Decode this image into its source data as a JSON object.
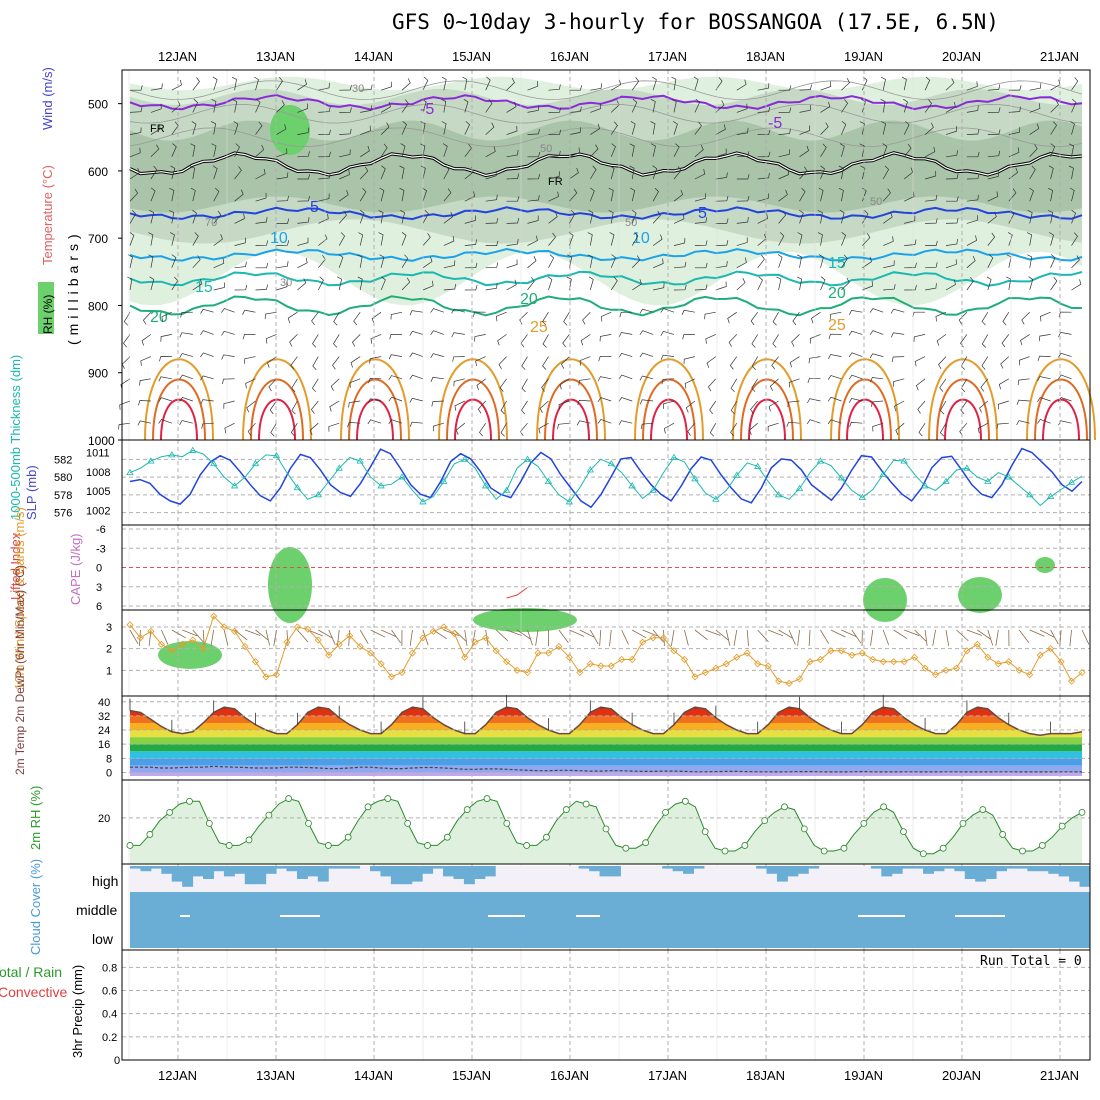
{
  "title": "GFS 0~10day 3-hourly for BOSSANGOA (17.5E, 6.5N)",
  "colors": {
    "purple": "#8a2bd8",
    "blue": "#2244dd",
    "lightblue": "#1aa3e8",
    "teal": "#1bb8b0",
    "green": "#1fae7a",
    "orange": "#e39c2a",
    "darkorange": "#e06a22",
    "red": "#e02244",
    "rh_light": "#dff0df",
    "rh_mid": "#a9c4a9",
    "rh_dark": "#6cd06c",
    "cloud": "#6aaed6",
    "cloud_bg": "#f4f0f8",
    "grid": "#b0b0b0"
  },
  "chart_data": [
    {
      "panel": "upper-air",
      "type": "heatmap",
      "ylabel": "(millibars)",
      "legend_labels": [
        "Temperature (°C)",
        "Wind (m/s)",
        "RH (%)"
      ],
      "xlabels": [
        "12JAN",
        "13JAN",
        "14JAN",
        "15JAN",
        "16JAN",
        "17JAN",
        "18JAN",
        "19JAN",
        "20JAN",
        "21JAN"
      ],
      "yticks": [
        500,
        600,
        700,
        800,
        900,
        1000
      ],
      "ylim": [
        450,
        1000
      ],
      "isotherm_labels": [
        "-5",
        "FR",
        "5",
        "10",
        "15",
        "20",
        "25"
      ],
      "rh_labels": [
        "30",
        "50",
        "70"
      ]
    },
    {
      "panel": "thickness-slp",
      "type": "line",
      "ylabel_left": "1000-500mb Thickness (dm)",
      "ylabel_right": "SLP (mb)",
      "left_ticks": [
        576,
        578,
        580,
        582
      ],
      "right_ticks": [
        1002,
        1005,
        1008,
        1011
      ],
      "series": [
        {
          "name": "Thickness",
          "values": [
            580.5,
            581.0,
            581.8,
            582.3,
            582.5,
            582.3,
            583.0,
            582.6,
            581.5,
            580.0,
            579.0,
            580.0,
            581.5,
            582.5,
            582.4,
            580.5,
            578.8,
            577.5,
            578.0,
            579.5,
            581.0,
            582.2,
            581.8,
            580.0,
            579.0,
            579.2,
            580.0,
            578.5,
            577.2,
            577.8,
            579.5,
            581.5,
            582.0,
            581.0,
            579.0,
            577.5,
            578.5,
            581.0,
            582.0,
            581.2,
            579.5,
            578.0,
            577.2,
            578.8,
            580.8,
            582.0,
            581.5,
            580.5,
            579.0,
            577.6,
            578.5,
            580.5,
            582.2,
            581.7,
            579.8,
            578.2,
            577.5,
            578.5,
            580.2,
            581.6,
            581.2,
            579.5,
            578.0,
            577.5,
            578.7,
            580.5,
            581.8,
            581.3,
            579.9,
            578.5,
            577.7,
            578.6,
            580.3,
            581.9,
            581.8,
            580.3,
            579.0,
            578.5,
            579.5,
            580.8,
            581.0,
            580.0,
            579.5,
            580.5,
            580.0,
            579.0,
            578.0,
            576.8,
            577.8,
            578.6,
            579.4,
            580.1
          ]
        },
        {
          "name": "SLP",
          "values": [
            1006.5,
            1006.8,
            1006.2,
            1004.5,
            1003.5,
            1003.0,
            1004.5,
            1007.5,
            1009.5,
            1010.5,
            1009.8,
            1008.0,
            1006.0,
            1004.3,
            1003.5,
            1005.5,
            1008.5,
            1010.7,
            1010.2,
            1008.3,
            1006.0,
            1004.8,
            1004.2,
            1006.2,
            1008.8,
            1011.5,
            1010.8,
            1008.5,
            1006.0,
            1004.5,
            1004.0,
            1006.5,
            1009.6,
            1010.8,
            1010.0,
            1008.0,
            1005.5,
            1004.5,
            1004.0,
            1006.5,
            1009.4,
            1011.0,
            1010.0,
            1007.5,
            1005.5,
            1003.5,
            1002.5,
            1004.5,
            1007.2,
            1010.0,
            1010.2,
            1008.0,
            1006.0,
            1004.5,
            1003.5,
            1005.8,
            1008.5,
            1010.3,
            1009.8,
            1007.5,
            1005.5,
            1003.8,
            1003.2,
            1005.5,
            1008.6,
            1010.0,
            1009.8,
            1008.3,
            1006.0,
            1004.8,
            1003.6,
            1005.5,
            1008.2,
            1010.5,
            1010.3,
            1008.2,
            1006.3,
            1004.6,
            1003.5,
            1005.5,
            1008.6,
            1010.2,
            1010.4,
            1008.3,
            1006.0,
            1004.5,
            1004.0,
            1006.0,
            1009.0,
            1011.6,
            1011.0,
            1009.5,
            1008.0,
            1006.0,
            1005.0,
            1006.5
          ]
        }
      ]
    },
    {
      "panel": "cape-li",
      "type": "line",
      "ylabel_left": "Lifted Index",
      "ylabel_right": "CAPE (J/kg)",
      "left_ticks": [
        "-6",
        "-3",
        "0",
        "3",
        "6"
      ],
      "series": [
        {
          "name": "CAPE",
          "x": [
            36,
            37,
            38
          ],
          "values": [
            2.4,
            3.0,
            4.5
          ]
        }
      ]
    },
    {
      "panel": "wind10m",
      "type": "line",
      "ylabel": "10m Wind Speed & Barbs (m/s)",
      "yticks": [
        1,
        2,
        3
      ],
      "ylim": [
        0,
        3.6
      ],
      "series": [
        {
          "name": "10m wind speed",
          "values": [
            3.1,
            2.5,
            2.8,
            2.2,
            1.9,
            2.2,
            2.4,
            2.0,
            3.5,
            3.0,
            2.8,
            2.1,
            1.4,
            0.7,
            0.8,
            2.3,
            3.0,
            2.9,
            2.4,
            1.7,
            2.2,
            2.6,
            2.1,
            1.8,
            1.3,
            0.7,
            0.9,
            1.8,
            2.5,
            2.8,
            3.0,
            2.7,
            1.6,
            2.3,
            2.5,
            1.9,
            1.4,
            1.0,
            0.9,
            1.8,
            1.8,
            2.1,
            1.6,
            0.9,
            1.3,
            1.2,
            1.2,
            1.5,
            1.5,
            2.3,
            2.5,
            2.5,
            1.9,
            1.5,
            0.7,
            0.9,
            1.1,
            1.3,
            1.6,
            1.8,
            1.3,
            1.2,
            0.5,
            0.4,
            0.6,
            1.4,
            1.5,
            1.9,
            1.9,
            1.7,
            1.8,
            1.5,
            1.4,
            1.4,
            1.4,
            1.6,
            1.1,
            0.8,
            1.0,
            1.1,
            1.9,
            2.2,
            1.6,
            1.3,
            1.4,
            1.0,
            0.8,
            1.7,
            2.0,
            1.4,
            0.5,
            0.9
          ]
        }
      ]
    },
    {
      "panel": "temp2m",
      "type": "area",
      "ylabel": "2m Temp 2m DewPt (6hr Min/Max) (°C)",
      "yticks": [
        0,
        8,
        16,
        24,
        32,
        40
      ],
      "ylim": [
        -2,
        41
      ],
      "series": [
        {
          "name": "2m Temp",
          "values": [
            35,
            34,
            30,
            26,
            23,
            22,
            23,
            28,
            34,
            37,
            36,
            31,
            27,
            24,
            22,
            22,
            27,
            34,
            37,
            36,
            31,
            27,
            24,
            22,
            22,
            27,
            34,
            37,
            36,
            31,
            27,
            24,
            22,
            22,
            27,
            34,
            37,
            36,
            31,
            27,
            24,
            22,
            22,
            27,
            34,
            37,
            36,
            31,
            27,
            24,
            22,
            22,
            27,
            34,
            37,
            36,
            31,
            27,
            24,
            22,
            22,
            27,
            34,
            37,
            36,
            31,
            27,
            24,
            22,
            22,
            27,
            34,
            37,
            36,
            31,
            27,
            24,
            22,
            22,
            27,
            34,
            37,
            36,
            31,
            27,
            24,
            22,
            21,
            22,
            22,
            22,
            23
          ]
        },
        {
          "name": "2m DewPt",
          "values": [
            3,
            3,
            3,
            2.5,
            2.5,
            2.8,
            3,
            3,
            3.5,
            3.2,
            3,
            2.8,
            2.5,
            2.5,
            2.5,
            3,
            3,
            2.8,
            2.5,
            2.2,
            2.2,
            2.5,
            3,
            3,
            2.5,
            2.2,
            2.2,
            2.5,
            2.8,
            2.8,
            2.5,
            2.2,
            1.8,
            1.8,
            2,
            2,
            1.8,
            1.5,
            1.2,
            1,
            1,
            1.2,
            1.2,
            1,
            0.8,
            0.8,
            1,
            1,
            0.8,
            0.6,
            0.6,
            0.8,
            0.8,
            0.6,
            0.4,
            0.4,
            0.5,
            0.6,
            0.6,
            0.5,
            0.4,
            0.4,
            0.3,
            0.4,
            0.5,
            0.5,
            0.4,
            0.3,
            0.3,
            0.4,
            0.5,
            0.4,
            0.3,
            0.3,
            0.4,
            0.4,
            0.3,
            0.3,
            0.4,
            0.4,
            0.3,
            0.3,
            0.3,
            0.4,
            0.4,
            0.3,
            0.3,
            0.3,
            0.3,
            0.4,
            0.4,
            0.3
          ]
        }
      ]
    },
    {
      "panel": "rh2m",
      "type": "line",
      "ylabel": "2m RH (%)",
      "yticks": [
        20
      ],
      "ylim": [
        4,
        33
      ],
      "series": [
        {
          "name": "2m RH",
          "values": [
            10,
            10,
            14,
            19,
            22,
            25,
            26,
            26,
            18,
            11,
            10,
            10,
            12,
            17,
            21,
            25,
            27,
            26,
            18,
            11,
            10,
            10,
            13,
            19,
            24,
            26,
            27,
            26,
            18,
            11,
            10,
            10,
            13,
            19,
            23,
            26,
            27,
            26,
            18,
            11,
            10,
            10,
            13,
            19,
            23,
            26,
            25,
            24,
            16,
            10,
            9,
            9,
            11,
            17,
            22,
            25,
            26,
            24,
            15,
            9,
            8,
            8,
            10,
            15,
            19,
            22,
            24,
            23,
            16,
            10,
            8,
            8,
            9,
            14,
            18,
            22,
            24,
            22,
            15,
            9,
            7,
            7,
            9,
            13,
            18,
            21,
            23,
            21,
            14,
            9,
            8,
            8,
            10,
            13,
            17,
            20,
            22
          ]
        }
      ]
    },
    {
      "panel": "cloud",
      "type": "area",
      "ylabel": "Cloud Cover (%)",
      "ylabels": [
        "high",
        "middle",
        "low"
      ],
      "series": [
        {
          "name": "high",
          "values": [
            10,
            20,
            10,
            30,
            60,
            80,
            40,
            50,
            20,
            40,
            30,
            70,
            70,
            30,
            10,
            20,
            50,
            40,
            60,
            10,
            10,
            10,
            0,
            20,
            40,
            70,
            70,
            60,
            30,
            10,
            40,
            50,
            70,
            50,
            40,
            0,
            0,
            0,
            0,
            0,
            0,
            0,
            0,
            10,
            20,
            40,
            40,
            0,
            0,
            0,
            0,
            10,
            20,
            30,
            10,
            0,
            0,
            0,
            0,
            0,
            10,
            30,
            60,
            40,
            30,
            10,
            0,
            0,
            0,
            0,
            0,
            10,
            40,
            30,
            10,
            10,
            30,
            20,
            10,
            20,
            50,
            60,
            50,
            20,
            10,
            10,
            20,
            20,
            30,
            40,
            60,
            80
          ]
        }
      ]
    },
    {
      "panel": "precip",
      "type": "bar",
      "ylabel": "3hr Precip (mm)",
      "legend_labels": [
        "Total / Rain",
        "Convective"
      ],
      "yticks": [
        "0",
        "0.2",
        "0.4",
        "0.6",
        "0.8"
      ],
      "ylim": [
        0,
        0.95
      ],
      "annotation": "Run Total = 0"
    }
  ]
}
